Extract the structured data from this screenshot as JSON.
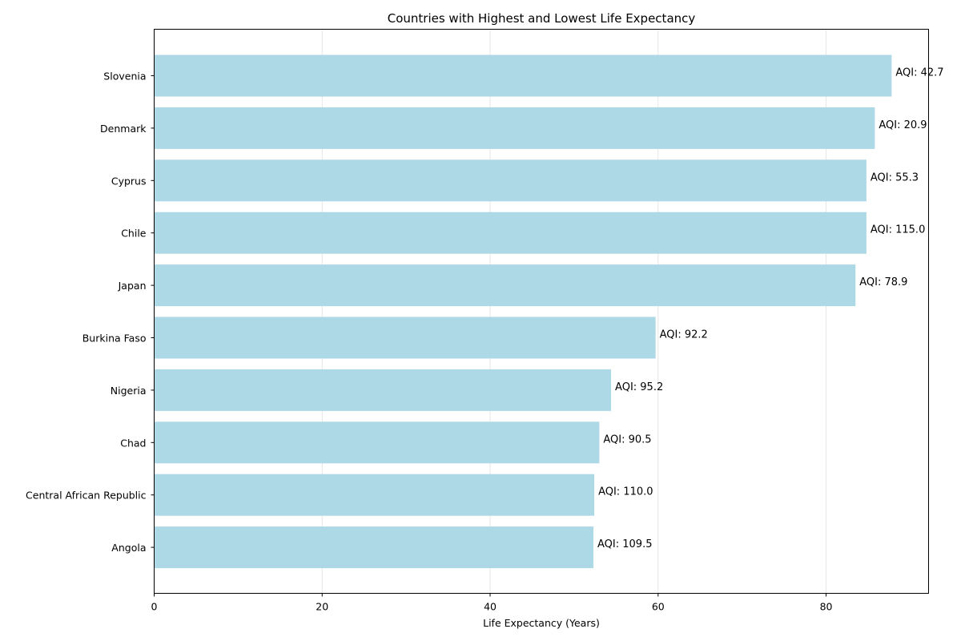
{
  "chart_data": {
    "type": "bar",
    "orientation": "horizontal",
    "title": "Countries with Highest and Lowest Life Expectancy",
    "xlabel": "Life Expectancy (Years)",
    "ylabel": "",
    "xlim": [
      0,
      92.2
    ],
    "xticks": [
      "0",
      "20",
      "40",
      "60",
      "80"
    ],
    "grid": "x",
    "bar_color": "#add8e6",
    "categories": [
      "Slovenia",
      "Denmark",
      "Cyprus",
      "Chile",
      "Japan",
      "Burkina Faso",
      "Nigeria",
      "Chad",
      "Central African Republic",
      "Angola"
    ],
    "values": [
      87.8,
      85.8,
      84.8,
      84.8,
      83.5,
      59.7,
      54.4,
      53.0,
      52.4,
      52.3
    ],
    "labels": [
      "AQI: 42.7",
      "AQI: 20.9",
      "AQI: 55.3",
      "AQI: 115.0",
      "AQI: 78.9",
      "AQI: 92.2",
      "AQI: 95.2",
      "AQI: 90.5",
      "AQI: 110.0",
      "AQI: 109.5"
    ]
  }
}
